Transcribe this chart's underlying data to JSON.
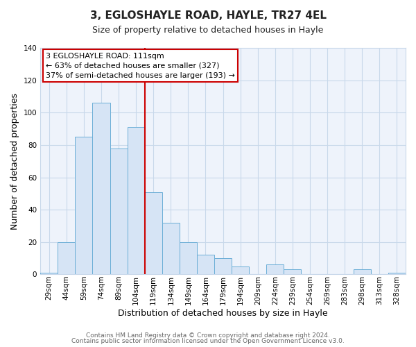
{
  "title": "3, EGLOSHAYLE ROAD, HAYLE, TR27 4EL",
  "subtitle": "Size of property relative to detached houses in Hayle",
  "xlabel": "Distribution of detached houses by size in Hayle",
  "ylabel": "Number of detached properties",
  "bar_labels": [
    "29sqm",
    "44sqm",
    "59sqm",
    "74sqm",
    "89sqm",
    "104sqm",
    "119sqm",
    "134sqm",
    "149sqm",
    "164sqm",
    "179sqm",
    "194sqm",
    "209sqm",
    "224sqm",
    "239sqm",
    "254sqm",
    "269sqm",
    "283sqm",
    "298sqm",
    "313sqm",
    "328sqm"
  ],
  "bar_values": [
    1,
    20,
    85,
    106,
    78,
    91,
    51,
    32,
    20,
    12,
    10,
    5,
    0,
    6,
    3,
    0,
    0,
    0,
    3,
    0,
    1
  ],
  "bar_color": "#d6e4f5",
  "bar_edge_color": "#6baed6",
  "ylim": [
    0,
    140
  ],
  "yticks": [
    0,
    20,
    40,
    60,
    80,
    100,
    120,
    140
  ],
  "vline_x_idx": 6,
  "vline_color": "#cc0000",
  "annotation_text": "3 EGLOSHAYLE ROAD: 111sqm\n← 63% of detached houses are smaller (327)\n37% of semi-detached houses are larger (193) →",
  "annotation_box_color": "#ffffff",
  "annotation_box_edge": "#cc0000",
  "footer1": "Contains HM Land Registry data © Crown copyright and database right 2024.",
  "footer2": "Contains public sector information licensed under the Open Government Licence v3.0.",
  "background_color": "#ffffff",
  "plot_bg_color": "#eef3fb",
  "grid_color": "#c8d8ea",
  "title_fontsize": 11,
  "subtitle_fontsize": 9,
  "axis_label_fontsize": 9,
  "tick_fontsize": 7.5,
  "footer_fontsize": 6.5
}
